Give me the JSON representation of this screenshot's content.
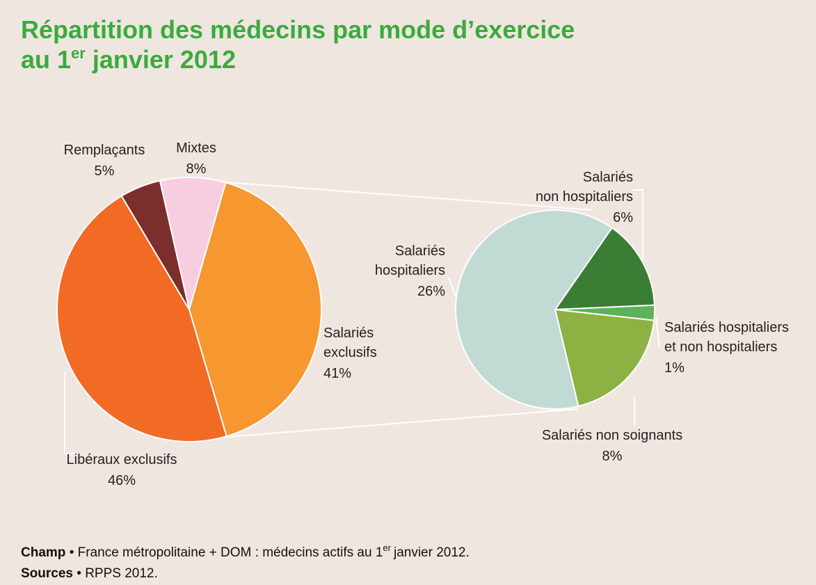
{
  "title": [
    "Répartition des médecins par mode d’exercice",
    "au 1",
    "er",
    "janvier 2012"
  ],
  "chart_data": [
    {
      "type": "pie",
      "categories": [
        [
          "Salariés",
          "exclusifs"
        ],
        [
          "Libéraux exclusifs"
        ],
        [
          "Remplaçants"
        ],
        [
          "Mixtes"
        ]
      ],
      "values": [
        41,
        46,
        5,
        8
      ],
      "value_labels": [
        "41%",
        "46%",
        "5%",
        "8%"
      ],
      "colors": [
        "#f7972f",
        "#f26b24",
        "#7b2e2b",
        "#f9cde0"
      ]
    },
    {
      "type": "pie",
      "categories": [
        [
          "Salariés",
          "non hospitaliers"
        ],
        [
          "Salariés hospitaliers",
          "et non hospitaliers"
        ],
        [
          "Salariés non soignants"
        ],
        [
          "Salariés",
          "hospitaliers"
        ]
      ],
      "values": [
        6,
        1,
        8,
        26
      ],
      "value_labels": [
        "6%",
        "1%",
        "8%",
        "26%"
      ],
      "colors": [
        "#3a7d35",
        "#5cb25a",
        "#8db243",
        "#c2dad4"
      ]
    }
  ],
  "notes": [
    {
      "label": "Champ",
      "separator": "•",
      "text": "France métropolitaine + DOM : médecins actifs au 1",
      "sup": "er",
      "text2": "janvier 2012."
    },
    {
      "label": "Sources",
      "separator": "•",
      "text": "RPPS 2012."
    }
  ]
}
